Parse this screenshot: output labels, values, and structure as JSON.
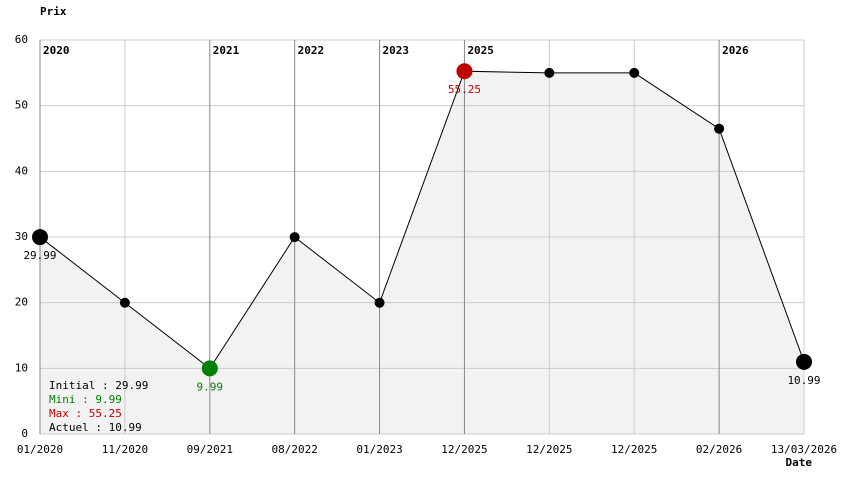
{
  "chart_data": {
    "type": "line",
    "y_label": "Prix",
    "x_label": "Date",
    "categories": [
      "01/2020",
      "11/2020",
      "09/2021",
      "08/2022",
      "01/2023",
      "12/2025",
      "12/2025",
      "12/2025",
      "02/2026",
      "13/03/2026"
    ],
    "year_labels": [
      "2020",
      null,
      "2021",
      "2022",
      "2023",
      "2025",
      null,
      null,
      "2026",
      null
    ],
    "values": [
      29.99,
      19.99,
      9.99,
      29.99,
      19.99,
      55.25,
      54.99,
      54.99,
      46.49,
      10.99
    ],
    "value_labels": [
      "29.99",
      null,
      "9.99",
      null,
      null,
      "55.25",
      null,
      null,
      null,
      "10.99"
    ],
    "color": "#000000",
    "fill": "#f2f2f2",
    "min_color": "#008000",
    "max_color": "#c00000",
    "ylim": [
      0,
      60
    ],
    "yticks": [
      0,
      10,
      20,
      30,
      40,
      50,
      60
    ],
    "grid": true,
    "legend": [
      {
        "text": "Initial : 29.99",
        "color": "#000000"
      },
      {
        "text": "Mini : 9.99",
        "color": "#008000"
      },
      {
        "text": "Max : 55.25",
        "color": "#c00000"
      },
      {
        "text": "Actuel : 10.99",
        "color": "#000000"
      }
    ]
  }
}
